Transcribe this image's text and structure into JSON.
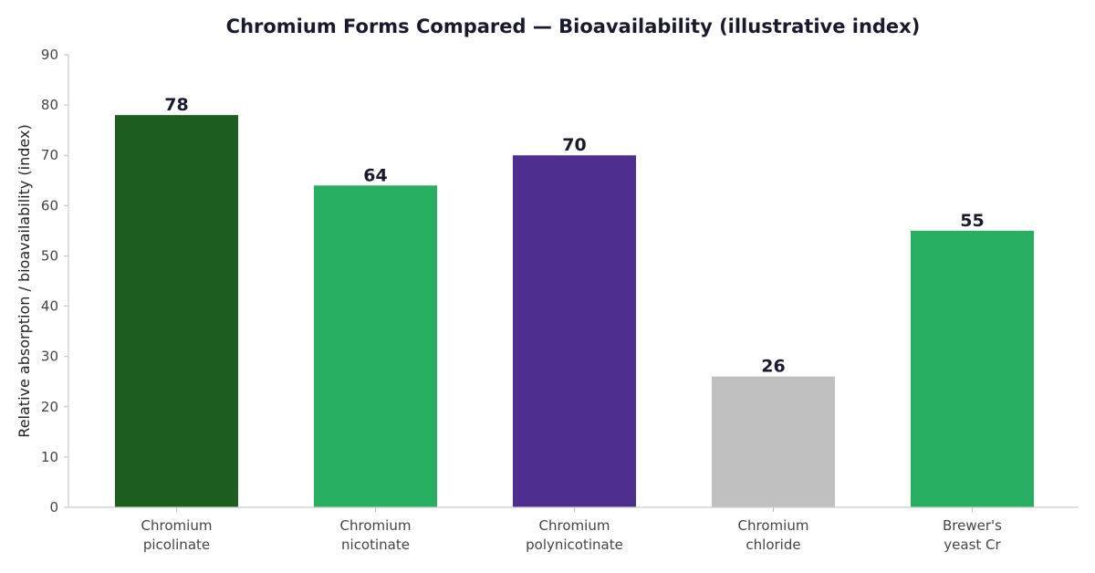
{
  "chart_data": {
    "type": "bar",
    "title": "Chromium Forms Compared — Bioavailability (illustrative index)",
    "xlabel": "",
    "ylabel": "Relative absorption / bioavailability (index)",
    "ylim": [
      0,
      90
    ],
    "yticks": [
      0,
      10,
      20,
      30,
      40,
      50,
      60,
      70,
      80,
      90
    ],
    "grid": false,
    "legend": "none",
    "categories": [
      [
        "Chromium",
        "picolinate"
      ],
      [
        "Chromium",
        "nicotinate"
      ],
      [
        "Chromium",
        "polynicotinate"
      ],
      [
        "Chromium",
        "chloride"
      ],
      [
        "Brewer's",
        "yeast Cr"
      ]
    ],
    "values": [
      78,
      64,
      70,
      26,
      55
    ],
    "bar_colors": [
      "#1b5e20",
      "#27ae60",
      "#4e2f8f",
      "#c0c0c0",
      "#27ae60"
    ]
  }
}
